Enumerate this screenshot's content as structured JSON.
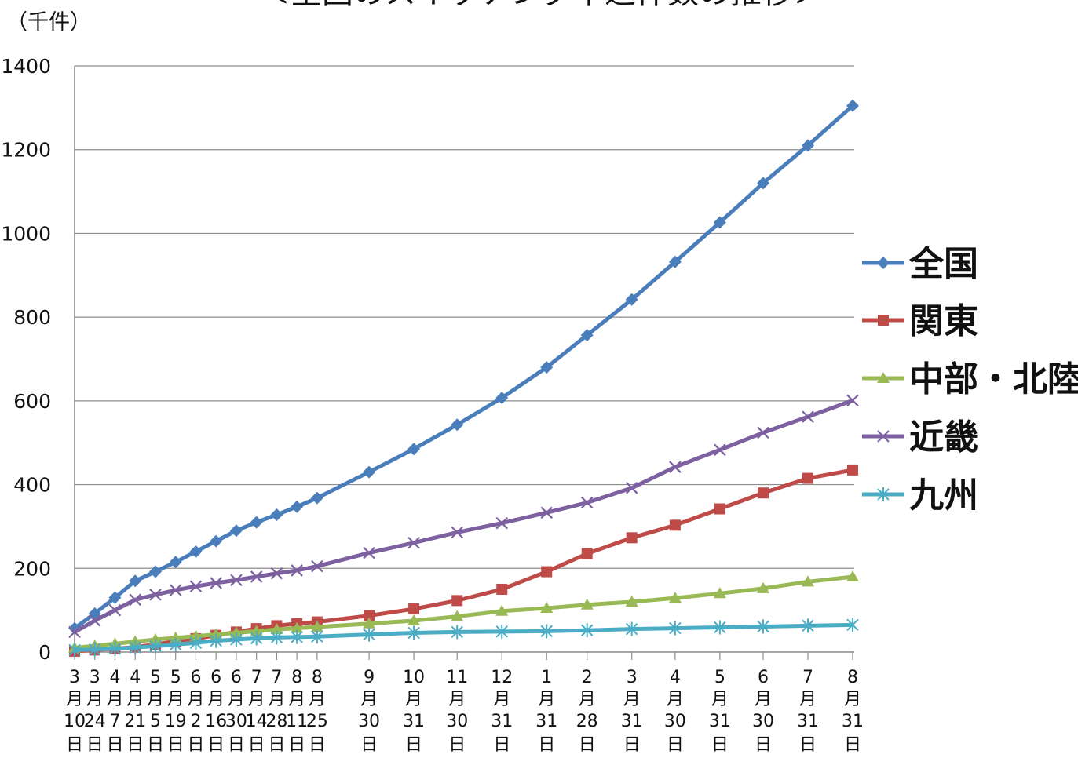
{
  "chart_data": {
    "type": "line",
    "title": "＜全国のスイッチング申込件数の推移＞",
    "unit_label": "（千件）",
    "ylim": [
      0,
      1400
    ],
    "yticks": [
      0,
      200,
      400,
      600,
      800,
      1000,
      1200,
      1400
    ],
    "grid": true,
    "legend_position": "right",
    "x": [
      "3月10日",
      "3月24日",
      "4月7日",
      "4月21日",
      "5月5日",
      "5月19日",
      "6月2日",
      "6月16日",
      "6月30日",
      "7月14日",
      "7月28日",
      "8月11日",
      "8月25日",
      "9月30日",
      "10月31日",
      "11月30日",
      "12月31日",
      "1月31日",
      "2月28日",
      "3月31日",
      "4月30日",
      "5月31日",
      "6月30日",
      "7月31日",
      "8月31日"
    ],
    "x_tick_lines": [
      [
        "3",
        "月",
        "10",
        "日"
      ],
      [
        "3",
        "月",
        "24",
        "日"
      ],
      [
        "4",
        "月",
        "7",
        "日"
      ],
      [
        "4",
        "月",
        "21",
        "日"
      ],
      [
        "5",
        "月",
        "5",
        "日"
      ],
      [
        "5",
        "月",
        "19",
        "日"
      ],
      [
        "6",
        "月",
        "2",
        "日"
      ],
      [
        "6",
        "月",
        "16",
        "日"
      ],
      [
        "6",
        "月",
        "30",
        "日"
      ],
      [
        "7",
        "月",
        "14",
        "日"
      ],
      [
        "7",
        "月",
        "28",
        "日"
      ],
      [
        "8",
        "月",
        "11",
        "日"
      ],
      [
        "8",
        "月",
        "25",
        "日"
      ],
      [
        "9",
        "月",
        "30",
        "日"
      ],
      [
        "10",
        "月",
        "31",
        "日"
      ],
      [
        "11",
        "月",
        "30",
        "日"
      ],
      [
        "12",
        "月",
        "31",
        "日"
      ],
      [
        "1",
        "月",
        "31",
        "日"
      ],
      [
        "2",
        "月",
        "28",
        "日"
      ],
      [
        "3",
        "月",
        "31",
        "日"
      ],
      [
        "4",
        "月",
        "30",
        "日"
      ],
      [
        "5",
        "月",
        "31",
        "日"
      ],
      [
        "6",
        "月",
        "30",
        "日"
      ],
      [
        "7",
        "月",
        "31",
        "日"
      ],
      [
        "8",
        "月",
        "31",
        "日"
      ]
    ],
    "series": [
      {
        "name": "全国",
        "color": "#4a7ebb",
        "marker": "diamond",
        "values": [
          57,
          92,
          130,
          170,
          192,
          215,
          240,
          265,
          290,
          310,
          328,
          347,
          368,
          430,
          485,
          543,
          607,
          680,
          757,
          842,
          932,
          1026,
          1120,
          1210,
          1305
        ]
      },
      {
        "name": "関東",
        "color": "#be4b48",
        "marker": "square",
        "values": [
          2,
          5,
          8,
          12,
          18,
          26,
          32,
          40,
          48,
          56,
          63,
          68,
          72,
          87,
          103,
          123,
          150,
          192,
          235,
          273,
          303,
          342,
          380,
          415,
          435
        ]
      },
      {
        "name": "中部・北陸",
        "color": "#98b954",
        "marker": "triangle",
        "values": [
          10,
          15,
          20,
          25,
          30,
          34,
          38,
          42,
          46,
          50,
          54,
          57,
          60,
          68,
          75,
          85,
          98,
          105,
          113,
          120,
          129,
          140,
          152,
          168,
          180
        ]
      },
      {
        "name": "近畿",
        "color": "#7d60a0",
        "marker": "x",
        "values": [
          48,
          75,
          100,
          125,
          137,
          148,
          157,
          165,
          172,
          180,
          188,
          195,
          205,
          237,
          261,
          286,
          308,
          333,
          357,
          392,
          442,
          483,
          524,
          562,
          601
        ]
      },
      {
        "name": "九州",
        "color": "#4bacc6",
        "marker": "asterisk",
        "values": [
          5,
          6,
          8,
          11,
          14,
          18,
          22,
          27,
          30,
          33,
          35,
          36,
          37,
          42,
          46,
          48,
          49,
          50,
          52,
          55,
          57,
          59,
          61,
          63,
          65
        ]
      }
    ]
  }
}
